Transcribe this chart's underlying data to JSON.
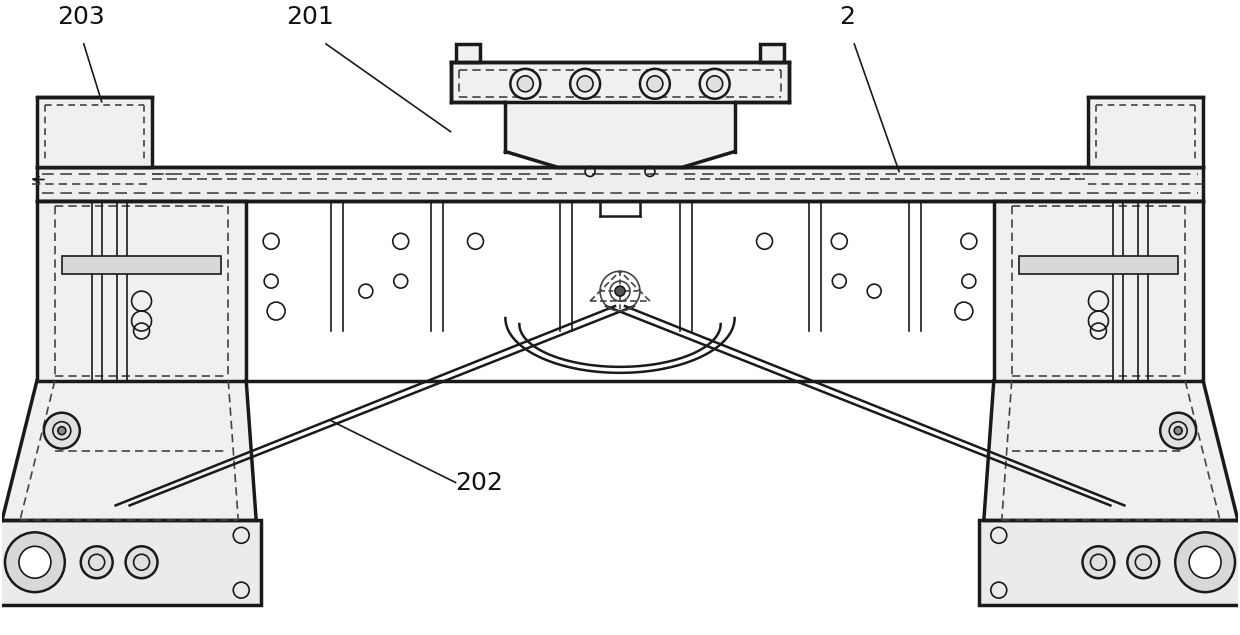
{
  "bg_color": "#ffffff",
  "lc": "#1a1a1a",
  "dc": "#444444",
  "lw_main": 2.5,
  "lw_med": 1.8,
  "lw_thin": 1.2,
  "fig_width": 12.4,
  "fig_height": 6.35,
  "label_203": "203",
  "label_201": "201",
  "label_202": "202",
  "label_2": "2"
}
